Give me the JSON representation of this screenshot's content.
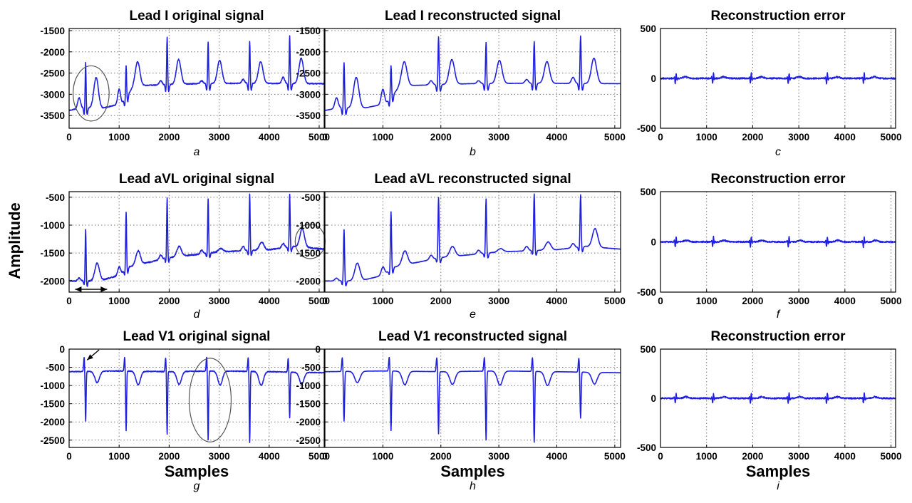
{
  "figure": {
    "ylabel": "Amplitude"
  },
  "colors": {
    "signal": "#1f1fe0",
    "axes": "#000000",
    "grid": "#7a7a7a",
    "annotation": "#555555"
  },
  "chart_data": [
    {
      "id": "a",
      "type": "line",
      "title": "Lead I original signal",
      "sublabel": "a",
      "xlabel": "",
      "xlim": [
        0,
        5100
      ],
      "ylim": [
        -3800,
        -1450
      ],
      "xticks": [
        0,
        1000,
        2000,
        3000,
        4000,
        5000
      ],
      "yticks": [
        -3500,
        -3000,
        -2500,
        -2000,
        -1500
      ],
      "grid": true,
      "lead": "I",
      "kind": "original",
      "annotations": [
        {
          "type": "ellipse",
          "cx": 440,
          "cy": -2980,
          "rx": 360,
          "ry": 650
        }
      ]
    },
    {
      "id": "b",
      "type": "line",
      "title": "Lead I reconstructed signal",
      "sublabel": "b",
      "xlabel": "",
      "xlim": [
        0,
        5100
      ],
      "ylim": [
        -3800,
        -1450
      ],
      "xticks": [
        0,
        1000,
        2000,
        3000,
        4000,
        5000
      ],
      "yticks": [
        -3500,
        -3000,
        -2500,
        -2000,
        -1500
      ],
      "grid": true,
      "lead": "I",
      "kind": "reconstructed",
      "annotations": []
    },
    {
      "id": "c",
      "type": "line",
      "title": "Reconstruction error",
      "sublabel": "c",
      "xlabel": "",
      "xlim": [
        0,
        5100
      ],
      "ylim": [
        -500,
        500
      ],
      "xticks": [
        0,
        1000,
        2000,
        3000,
        4000,
        5000
      ],
      "yticks": [
        -500,
        0,
        500
      ],
      "grid": true,
      "lead": "I",
      "kind": "error",
      "annotations": []
    },
    {
      "id": "d",
      "type": "line",
      "title": "Lead aVL original signal",
      "sublabel": "d",
      "xlabel": "",
      "xlim": [
        0,
        5100
      ],
      "ylim": [
        -2200,
        -400
      ],
      "xticks": [
        0,
        1000,
        2000,
        3000,
        4000,
        5000
      ],
      "yticks": [
        -2000,
        -1500,
        -1000,
        -500
      ],
      "grid": true,
      "lead": "aVL",
      "kind": "original",
      "annotations": [
        {
          "type": "ellipse",
          "cx": 4820,
          "cy": -1290,
          "rx": 300,
          "ry": 310
        },
        {
          "type": "double-arrow",
          "x1": 120,
          "x2": 760,
          "y": -2150
        }
      ]
    },
    {
      "id": "e",
      "type": "line",
      "title": "Lead aVL reconstructed signal",
      "sublabel": "e",
      "xlabel": "",
      "xlim": [
        0,
        5100
      ],
      "ylim": [
        -2200,
        -400
      ],
      "xticks": [
        0,
        1000,
        2000,
        3000,
        4000,
        5000
      ],
      "yticks": [
        -2000,
        -1500,
        -1000,
        -500
      ],
      "grid": true,
      "lead": "aVL",
      "kind": "reconstructed",
      "annotations": []
    },
    {
      "id": "f",
      "type": "line",
      "title": "Reconstruction error",
      "sublabel": "f",
      "xlabel": "",
      "xlim": [
        0,
        5100
      ],
      "ylim": [
        -500,
        500
      ],
      "xticks": [
        0,
        1000,
        2000,
        3000,
        4000,
        5000
      ],
      "yticks": [
        -500,
        0,
        500
      ],
      "grid": true,
      "lead": "aVL",
      "kind": "error",
      "annotations": []
    },
    {
      "id": "g",
      "type": "line",
      "title": "Lead V1 original signal",
      "sublabel": "g",
      "xlabel": "Samples",
      "xlim": [
        0,
        5100
      ],
      "ylim": [
        -2700,
        0
      ],
      "xticks": [
        0,
        1000,
        2000,
        3000,
        4000,
        5000
      ],
      "yticks": [
        -2500,
        -2000,
        -1500,
        -1000,
        -500,
        0
      ],
      "grid": true,
      "lead": "V1",
      "kind": "original",
      "annotations": [
        {
          "type": "ellipse",
          "cx": 2820,
          "cy": -1400,
          "rx": 420,
          "ry": 1150
        },
        {
          "type": "arrow",
          "x1": 600,
          "y1": -20,
          "x2": 360,
          "y2": -300
        }
      ]
    },
    {
      "id": "h",
      "type": "line",
      "title": "Lead V1 reconstructed signal",
      "sublabel": "h",
      "xlabel": "Samples",
      "xlim": [
        0,
        5100
      ],
      "ylim": [
        -2700,
        0
      ],
      "xticks": [
        0,
        1000,
        2000,
        3000,
        4000,
        5000
      ],
      "yticks": [
        -2500,
        -2000,
        -1500,
        -1000,
        -500,
        0
      ],
      "grid": true,
      "lead": "V1",
      "kind": "reconstructed",
      "annotations": []
    },
    {
      "id": "i",
      "type": "line",
      "title": "Reconstruction error",
      "sublabel": "i",
      "xlabel": "Samples",
      "xlim": [
        0,
        5100
      ],
      "ylim": [
        -500,
        500
      ],
      "xticks": [
        0,
        1000,
        2000,
        3000,
        4000,
        5000
      ],
      "yticks": [
        -500,
        0,
        500
      ],
      "grid": true,
      "lead": "V1",
      "kind": "error",
      "annotations": []
    }
  ],
  "leads": {
    "I": {
      "baseline": [
        [
          0,
          -3380
        ],
        [
          250,
          -3320
        ],
        [
          700,
          -3320
        ],
        [
          1050,
          -3220
        ],
        [
          1300,
          -2800
        ],
        [
          2500,
          -2750
        ],
        [
          3500,
          -2740
        ],
        [
          5100,
          -2750
        ]
      ],
      "beats": [
        [
          330,
          -2250
        ],
        [
          1140,
          -2320
        ],
        [
          1960,
          -1640
        ],
        [
          2780,
          -1770
        ],
        [
          3610,
          -1750
        ],
        [
          4410,
          -1620
        ]
      ],
      "twaves": [
        [
          540,
          -2600
        ],
        [
          1370,
          -2230
        ],
        [
          2190,
          -2180
        ],
        [
          3010,
          -2200
        ],
        [
          3830,
          -2230
        ],
        [
          4640,
          -2150
        ]
      ],
      "pwaves": [
        [
          200,
          -3080
        ],
        [
          1000,
          -2880
        ],
        [
          1830,
          -2680
        ],
        [
          2650,
          -2680
        ],
        [
          3480,
          -2650
        ],
        [
          4280,
          -2600
        ]
      ],
      "qdepth": 160,
      "sdepth": 160
    },
    "aVL": {
      "baseline": [
        [
          0,
          -2000
        ],
        [
          600,
          -2000
        ],
        [
          1000,
          -1900
        ],
        [
          1200,
          -1750
        ],
        [
          2000,
          -1580
        ],
        [
          3000,
          -1480
        ],
        [
          4000,
          -1440
        ],
        [
          4500,
          -1380
        ],
        [
          5100,
          -1430
        ]
      ],
      "beats": [
        [
          330,
          -1080
        ],
        [
          1140,
          -760
        ],
        [
          1960,
          -500
        ],
        [
          2780,
          -530
        ],
        [
          3610,
          -440
        ],
        [
          4410,
          -450
        ]
      ],
      "twaves": [
        [
          560,
          -1680
        ],
        [
          1380,
          -1460
        ],
        [
          2200,
          -1380
        ],
        [
          3030,
          -1420
        ],
        [
          3850,
          -1300
        ],
        [
          4660,
          -1060
        ]
      ],
      "pwaves": [
        [
          200,
          -1950
        ],
        [
          1000,
          -1750
        ],
        [
          1830,
          -1540
        ],
        [
          2650,
          -1450
        ],
        [
          3480,
          -1380
        ],
        [
          4280,
          -1330
        ]
      ],
      "qdepth": 70,
      "sdepth": 90
    },
    "V1": {
      "baseline": [
        [
          0,
          -620
        ],
        [
          1000,
          -600
        ],
        [
          2000,
          -620
        ],
        [
          3000,
          -600
        ],
        [
          4000,
          -620
        ],
        [
          5100,
          -650
        ]
      ],
      "beats": [
        [
          330,
          -1980
        ],
        [
          1140,
          -2240
        ],
        [
          1960,
          -2330
        ],
        [
          2780,
          -2500
        ],
        [
          3610,
          -2560
        ],
        [
          4410,
          -1900
        ]
      ],
      "twaves": [
        [
          560,
          -920
        ],
        [
          1380,
          -980
        ],
        [
          2200,
          -970
        ],
        [
          3020,
          -990
        ],
        [
          3840,
          -1000
        ],
        [
          4650,
          -960
        ]
      ],
      "pwaves": [],
      "qdepth": -380,
      "sdepth": 0
    }
  }
}
